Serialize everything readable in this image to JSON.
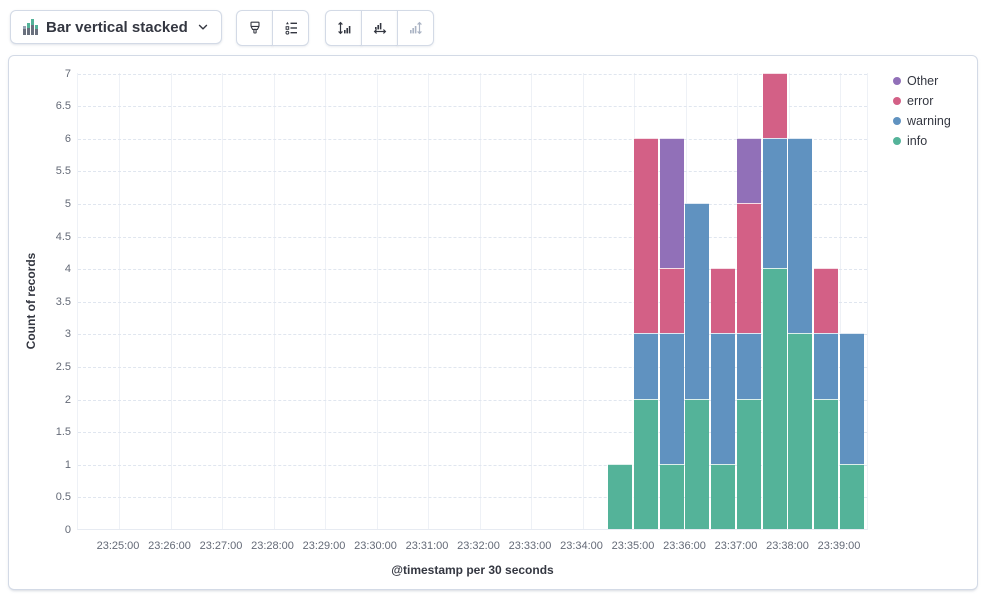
{
  "toolbar": {
    "chart_switcher_label": "Bar vertical stacked",
    "chart_switcher_icon": "bar-vertical-stacked-icon",
    "buttons": [
      {
        "name": "visual-options",
        "icon": "brush-icon",
        "disabled": false
      },
      {
        "name": "legend-settings",
        "icon": "legend-list-icon",
        "disabled": false
      },
      {
        "name": "left-axis",
        "icon": "left-axis-icon",
        "disabled": false
      },
      {
        "name": "bottom-axis",
        "icon": "bottom-axis-icon",
        "disabled": false
      },
      {
        "name": "right-axis",
        "icon": "right-axis-icon",
        "disabled": true
      }
    ]
  },
  "chart_data": {
    "type": "bar",
    "stacked": true,
    "orientation": "vertical",
    "title": "",
    "xlabel": "@timestamp per 30 seconds",
    "ylabel": "Count of records",
    "ylim": [
      0,
      7
    ],
    "grid": true,
    "legend_position": "right",
    "y_ticks": [
      "0",
      "0.5",
      "1",
      "1.5",
      "2",
      "2.5",
      "3",
      "3.5",
      "4",
      "4.5",
      "5",
      "5.5",
      "6",
      "6.5",
      "7"
    ],
    "x_axis_labels": [
      "23:25:00",
      "23:26:00",
      "23:27:00",
      "23:28:00",
      "23:29:00",
      "23:30:00",
      "23:31:00",
      "23:32:00",
      "23:33:00",
      "23:34:00",
      "23:35:00",
      "23:36:00",
      "23:37:00",
      "23:38:00",
      "23:39:00"
    ],
    "bucket_interval_seconds": 30,
    "categories": [
      "23:34:30",
      "23:35:00",
      "23:35:30",
      "23:36:00",
      "23:36:30",
      "23:37:00",
      "23:37:30",
      "23:38:00",
      "23:38:30",
      "23:39:00"
    ],
    "series": [
      {
        "name": "Other",
        "color": "#9170B8",
        "values": [
          0,
          0,
          2,
          0,
          0,
          1,
          0,
          0,
          0,
          0
        ]
      },
      {
        "name": "error",
        "color": "#D36086",
        "values": [
          0,
          3,
          1,
          0,
          1,
          2,
          1,
          0,
          1,
          0
        ]
      },
      {
        "name": "warning",
        "color": "#6092C0",
        "values": [
          0,
          1,
          2,
          3,
          2,
          1,
          2,
          3,
          1,
          2
        ]
      },
      {
        "name": "info",
        "color": "#54B399",
        "values": [
          1,
          2,
          1,
          2,
          1,
          2,
          4,
          3,
          2,
          1
        ]
      }
    ],
    "totals": [
      1,
      6,
      6,
      5,
      4,
      6,
      7,
      6,
      4,
      3
    ]
  },
  "icon_colors": {
    "enabled": "#343741",
    "disabled": "#ABB4C4",
    "switcher_icon_green": "#54B399",
    "switcher_icon_gray": "#69707D"
  }
}
